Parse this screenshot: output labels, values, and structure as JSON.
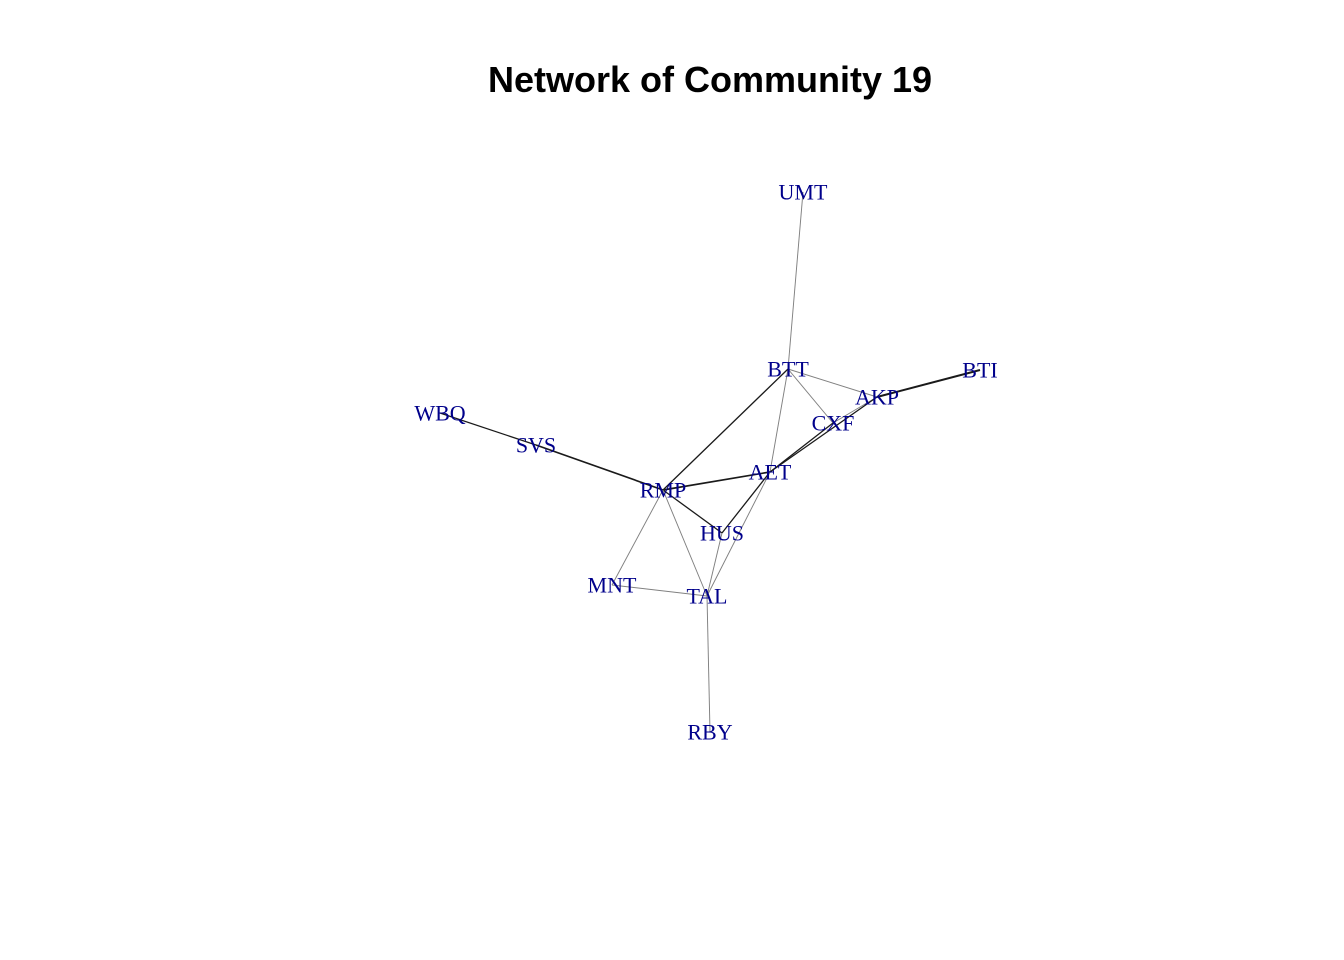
{
  "title": "Network of Community 19",
  "colors": {
    "background": "#ffffff",
    "title": "#000000",
    "node_label": "#00008b",
    "edge": "#808080",
    "edge_strong": "#1a1a1a"
  },
  "nodes": [
    {
      "id": "UMT",
      "label": "UMT"
    },
    {
      "id": "BTT",
      "label": "BTT"
    },
    {
      "id": "BTI",
      "label": "BTI"
    },
    {
      "id": "AKP",
      "label": "AKP"
    },
    {
      "id": "CXF",
      "label": "CXF"
    },
    {
      "id": "WBQ",
      "label": "WBQ"
    },
    {
      "id": "SVS",
      "label": "SVS"
    },
    {
      "id": "AET",
      "label": "AET"
    },
    {
      "id": "RMP",
      "label": "RMP"
    },
    {
      "id": "HUS",
      "label": "HUS"
    },
    {
      "id": "MNT",
      "label": "MNT"
    },
    {
      "id": "TAL",
      "label": "TAL"
    },
    {
      "id": "RBY",
      "label": "RBY"
    }
  ],
  "edges": [
    {
      "source": "UMT",
      "target": "BTT",
      "weight": 1
    },
    {
      "source": "BTT",
      "target": "AKP",
      "weight": 1
    },
    {
      "source": "BTT",
      "target": "CXF",
      "weight": 1
    },
    {
      "source": "BTT",
      "target": "AET",
      "weight": 1
    },
    {
      "source": "BTT",
      "target": "RMP",
      "weight": 2
    },
    {
      "source": "AKP",
      "target": "BTI",
      "weight": 4
    },
    {
      "source": "AKP",
      "target": "CXF",
      "weight": 1
    },
    {
      "source": "AKP",
      "target": "AET",
      "weight": 2
    },
    {
      "source": "CXF",
      "target": "AET",
      "weight": 2
    },
    {
      "source": "WBQ",
      "target": "SVS",
      "weight": 2
    },
    {
      "source": "SVS",
      "target": "RMP",
      "weight": 3
    },
    {
      "source": "RMP",
      "target": "AET",
      "weight": 3
    },
    {
      "source": "RMP",
      "target": "HUS",
      "weight": 2
    },
    {
      "source": "RMP",
      "target": "TAL",
      "weight": 1
    },
    {
      "source": "RMP",
      "target": "MNT",
      "weight": 1
    },
    {
      "source": "AET",
      "target": "HUS",
      "weight": 2
    },
    {
      "source": "AET",
      "target": "TAL",
      "weight": 1
    },
    {
      "source": "HUS",
      "target": "TAL",
      "weight": 1
    },
    {
      "source": "MNT",
      "target": "TAL",
      "weight": 1
    },
    {
      "source": "TAL",
      "target": "RBY",
      "weight": 1
    }
  ]
}
